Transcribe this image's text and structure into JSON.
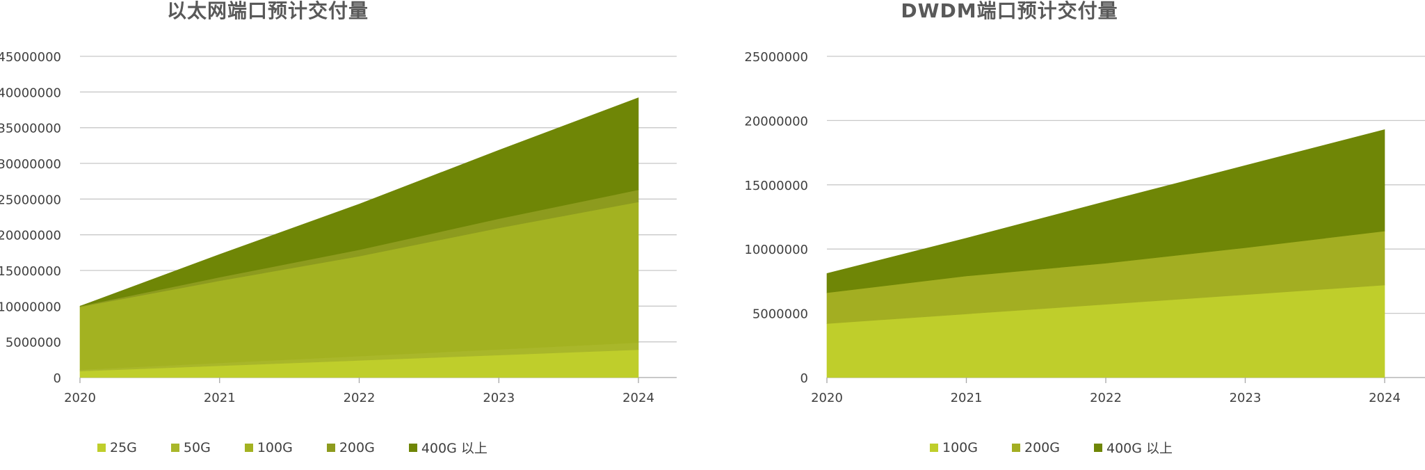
{
  "chart_data": [
    {
      "type": "area",
      "stacked": true,
      "title": "以太网端口预计交付量",
      "categories": [
        "2020",
        "2021",
        "2022",
        "2023",
        "2024"
      ],
      "ylim": [
        0,
        45000000
      ],
      "yticks": [
        "0",
        "5000000",
        "10000000",
        "15000000",
        "20000000",
        "25000000",
        "30000000",
        "35000000",
        "40000000",
        "45000000"
      ],
      "series": [
        {
          "name": "25G",
          "color": "#bfce2b",
          "values": [
            900000,
            1650000,
            2400000,
            3150000,
            3900000
          ]
        },
        {
          "name": "50G",
          "color": "#a9b72a",
          "values": [
            200000,
            400000,
            600000,
            800000,
            1000000
          ]
        },
        {
          "name": "100G",
          "color": "#a3b221",
          "values": [
            8800000,
            11500000,
            14000000,
            17000000,
            19700000
          ]
        },
        {
          "name": "200G",
          "color": "#8d9b1e",
          "values": [
            100000,
            500000,
            900000,
            1300000,
            1700000
          ]
        },
        {
          "name": "400G 以上",
          "color": "#6f8606",
          "values": [
            0,
            3200000,
            6400000,
            9600000,
            12900000
          ]
        }
      ],
      "legend_position": "bottom",
      "grid": true
    },
    {
      "type": "area",
      "stacked": true,
      "title": "DWDM端口预计交付量",
      "categories": [
        "2020",
        "2021",
        "2022",
        "2023",
        "2024"
      ],
      "ylim": [
        0,
        25000000
      ],
      "yticks": [
        "0",
        "5000000",
        "10000000",
        "15000000",
        "20000000",
        "25000000"
      ],
      "series": [
        {
          "name": "100G",
          "color": "#bfce2b",
          "values": [
            4200000,
            4950000,
            5700000,
            6450000,
            7200000
          ]
        },
        {
          "name": "200G",
          "color": "#a3ae22",
          "values": [
            2400000,
            2950000,
            3200000,
            3650000,
            4200000
          ]
        },
        {
          "name": "400G 以上",
          "color": "#6f8606",
          "values": [
            1500000,
            2950000,
            4800000,
            6400000,
            7900000
          ]
        }
      ],
      "legend_position": "bottom",
      "grid": true
    }
  ]
}
